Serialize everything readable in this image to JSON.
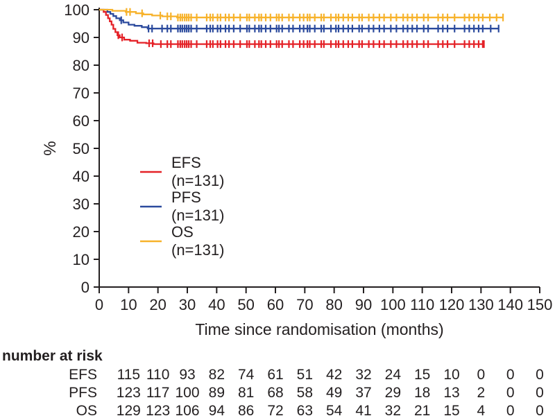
{
  "colors": {
    "background": "#ffffff",
    "axis": "#231f20",
    "text": "#231f20",
    "efs": "#e42127",
    "pfs": "#2b4a9d",
    "os": "#f7b22a"
  },
  "chart_data": {
    "type": "line",
    "variant": "kaplan-meier-step",
    "title": "",
    "xlabel": "Time since randomisation (months)",
    "ylabel": "%",
    "xlim": [
      0,
      150
    ],
    "ylim": [
      0,
      100
    ],
    "xticks": [
      0,
      10,
      20,
      30,
      40,
      50,
      60,
      70,
      80,
      90,
      100,
      110,
      120,
      130,
      140,
      150
    ],
    "yticks": [
      0,
      10,
      20,
      30,
      40,
      50,
      60,
      70,
      80,
      90,
      100
    ],
    "grid": false,
    "legend_position": "inside-left-middle",
    "series": [
      {
        "name": "EFS",
        "n_label": "(n=131)",
        "color_key": "efs",
        "end_month": 131,
        "steps": [
          [
            0,
            100
          ],
          [
            1.5,
            99.2
          ],
          [
            2.3,
            98.1
          ],
          [
            3,
            96.9
          ],
          [
            3.6,
            95.8
          ],
          [
            4.2,
            94.6
          ],
          [
            4.8,
            93.1
          ],
          [
            5.5,
            91.9
          ],
          [
            6.2,
            90.8
          ],
          [
            7,
            90
          ],
          [
            8.5,
            89.2
          ],
          [
            10.5,
            88.8
          ],
          [
            13,
            88.1
          ],
          [
            16,
            87.9
          ],
          [
            18.5,
            87.6
          ]
        ],
        "censor_months": [
          6.5,
          7.8,
          17,
          18.2,
          21,
          23.2,
          24.4,
          26.8,
          27.6,
          28.3,
          29.1,
          29.8,
          30.5,
          31.3,
          33.2,
          36.6,
          37.8,
          38.7,
          40.3,
          41.3,
          43,
          44.2,
          45.8,
          48,
          50.3,
          51.1,
          53,
          54.4,
          55.2,
          56.7,
          58.3,
          60.4,
          61.2,
          62.3,
          64.6,
          66,
          68.3,
          69.6,
          70.9,
          71.7,
          73.4,
          75.6,
          76.5,
          78.9,
          80.6,
          81.5,
          83.1,
          84.8,
          86.2,
          88.5,
          89.5,
          91.8,
          93.4,
          95.4,
          97,
          99.3,
          101.2,
          103.5,
          105,
          106.6,
          108.2,
          110.5,
          112,
          115.4,
          117,
          118.6,
          121,
          124.4,
          126,
          127.6,
          129.2,
          130.6,
          131
        ]
      },
      {
        "name": "PFS",
        "n_label": "(n=131)",
        "color_key": "pfs",
        "end_month": 136,
        "steps": [
          [
            0,
            100
          ],
          [
            2.8,
            99.2
          ],
          [
            3.8,
            98.5
          ],
          [
            4.8,
            97.7
          ],
          [
            5.8,
            96.9
          ],
          [
            7,
            96.2
          ],
          [
            8.2,
            95.4
          ],
          [
            10,
            94.6
          ],
          [
            12,
            94.2
          ],
          [
            14.5,
            93.7
          ],
          [
            16.5,
            93.2
          ]
        ],
        "censor_months": [
          7.5,
          16.8,
          18,
          21.4,
          23.2,
          24.4,
          26.8,
          27.6,
          28.3,
          29.1,
          29.8,
          30.5,
          31.3,
          33.2,
          36.6,
          37.8,
          38.7,
          40.3,
          41.3,
          43,
          44.2,
          45.8,
          48,
          50.3,
          51.1,
          53,
          54.4,
          55.2,
          56.7,
          58.3,
          60.4,
          61.2,
          62.3,
          64.6,
          66,
          68.3,
          69.6,
          70.9,
          71.7,
          73.4,
          75.6,
          76.5,
          78.9,
          80.6,
          81.5,
          83.1,
          84.8,
          86.2,
          88.5,
          89.5,
          91.8,
          93.4,
          95.4,
          97,
          99.3,
          101.2,
          103.5,
          105,
          106.6,
          108.2,
          110.5,
          112,
          115.4,
          117,
          118.6,
          121,
          124.4,
          126,
          127.6,
          129.2,
          130.6,
          133.3,
          136
        ]
      },
      {
        "name": "OS",
        "n_label": "(n=131)",
        "color_key": "os",
        "end_month": 137.5,
        "steps": [
          [
            0,
            100
          ],
          [
            4.5,
            99.6
          ],
          [
            9,
            99.2
          ],
          [
            12.5,
            98.7
          ],
          [
            15,
            98.3
          ],
          [
            18,
            97.9
          ],
          [
            21.5,
            97.6
          ],
          [
            26.5,
            97.2
          ]
        ],
        "censor_months": [
          9.3,
          10.5,
          14.6,
          20.8,
          23.2,
          24.4,
          26.8,
          27.6,
          28.3,
          29.1,
          29.8,
          30.5,
          31.3,
          33.2,
          36.6,
          37.8,
          38.7,
          40.3,
          41.3,
          43,
          44.2,
          45.8,
          48,
          50.3,
          51.1,
          53,
          54.4,
          55.2,
          56.7,
          58.3,
          60.4,
          61.2,
          62.3,
          64.6,
          66,
          68.3,
          69.6,
          70.9,
          71.7,
          73.4,
          75.6,
          76.5,
          78.9,
          80.6,
          81.5,
          83.1,
          84.8,
          86.2,
          88.5,
          89.5,
          91.8,
          93.4,
          95.4,
          97,
          99.3,
          101.2,
          103.5,
          105,
          106.6,
          108.2,
          110.5,
          112,
          115.4,
          117,
          118.6,
          121,
          124.4,
          126,
          127.6,
          129.2,
          130.6,
          133,
          135.3,
          137.5
        ]
      }
    ],
    "risk_table": {
      "title": "number at risk",
      "columns_months": [
        10,
        20,
        30,
        40,
        50,
        60,
        70,
        80,
        90,
        100,
        110,
        120,
        130,
        140,
        150
      ],
      "rows": [
        {
          "label": "EFS",
          "values": [
            115,
            110,
            93,
            82,
            74,
            61,
            51,
            42,
            32,
            24,
            15,
            10,
            0,
            0,
            0
          ]
        },
        {
          "label": "PFS",
          "values": [
            123,
            117,
            100,
            89,
            81,
            68,
            58,
            49,
            37,
            29,
            18,
            13,
            2,
            0,
            0
          ]
        },
        {
          "label": "OS",
          "values": [
            129,
            123,
            106,
            94,
            86,
            72,
            63,
            54,
            41,
            32,
            21,
            15,
            4,
            0,
            0
          ]
        }
      ]
    }
  }
}
